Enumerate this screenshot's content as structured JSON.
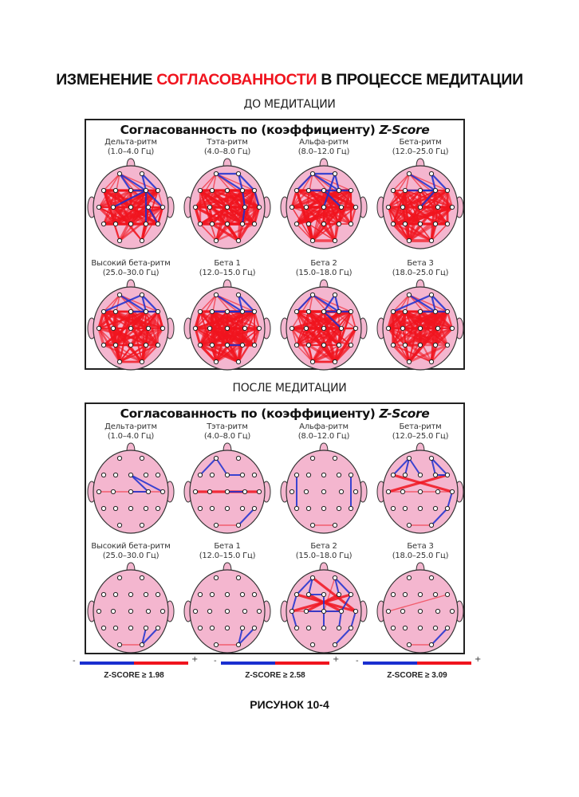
{
  "title": {
    "part1": "ИЗМЕНЕНИЕ ",
    "highlight": "СОГЛАСОВАННОСТИ",
    "part2": " В ПРОЦЕССЕ МЕДИТАЦИИ"
  },
  "colors": {
    "positive": "#f0141e",
    "negative": "#1a2fd0",
    "head_fill": "#f4b6cf",
    "head_outline": "#333333",
    "highlight": "#f0141e"
  },
  "electrodes": [
    "Fp1",
    "Fp2",
    "F7",
    "F3",
    "Fz",
    "F4",
    "F8",
    "T3",
    "C3",
    "Cz",
    "C4",
    "T4",
    "T5",
    "P3",
    "Pz",
    "P4",
    "T6",
    "O1",
    "O2"
  ],
  "panels": [
    {
      "section_label": "ДО МЕДИТАЦИИ",
      "title": "Согласованность по (коэффициенту) ",
      "title_italic": "Z-Score",
      "heads": [
        {
          "name": "Дельта-ритм",
          "range": "(1.0–4.0 Гц)",
          "density": "dense",
          "blue": [
            [
              "Fp1",
              "F4"
            ],
            [
              "Fp2",
              "F4"
            ],
            [
              "Fp1",
              "Fz"
            ],
            [
              "F4",
              "T4"
            ],
            [
              "F4",
              "P4"
            ],
            [
              "F4",
              "C3"
            ],
            [
              "Fz",
              "F4"
            ],
            [
              "C4",
              "T6"
            ],
            [
              "Fp2",
              "F8"
            ]
          ]
        },
        {
          "name": "Тэта-ритм",
          "range": "(4.0–8.0 Гц)",
          "density": "dense",
          "blue": [
            [
              "Fp1",
              "Fp2"
            ],
            [
              "Fp2",
              "F8"
            ],
            [
              "Fp1",
              "F4"
            ],
            [
              "Fp2",
              "F4"
            ],
            [
              "F4",
              "C4"
            ],
            [
              "C4",
              "P4"
            ],
            [
              "F8",
              "T4"
            ]
          ]
        },
        {
          "name": "Альфа-ритм",
          "range": "(8.0–12.0 Гц)",
          "density": "dense",
          "blue": [
            [
              "Fp1",
              "Fp2"
            ],
            [
              "Fp2",
              "F4"
            ],
            [
              "Fp1",
              "F4"
            ],
            [
              "Fp2",
              "Cz"
            ],
            [
              "F4",
              "F8"
            ],
            [
              "F3",
              "F4"
            ],
            [
              "Fz",
              "C4"
            ],
            [
              "Fp1",
              "F7"
            ]
          ]
        },
        {
          "name": "Бета-ритм",
          "range": "(12.0–25.0 Гц)",
          "density": "dense",
          "blue": [
            [
              "Fp1",
              "F4"
            ],
            [
              "Fp2",
              "F4"
            ],
            [
              "Fp2",
              "F8"
            ],
            [
              "Fz",
              "F4"
            ],
            [
              "F4",
              "Cz"
            ],
            [
              "F3",
              "F4"
            ]
          ]
        },
        {
          "name": "Высокий бета-ритм",
          "range": "(25.0–30.0 Гц)",
          "density": "dense",
          "blue": [
            [
              "Fp1",
              "F4"
            ],
            [
              "Fp2",
              "F4"
            ],
            [
              "Fp2",
              "F8"
            ],
            [
              "F4",
              "F8"
            ],
            [
              "Fz",
              "F4"
            ],
            [
              "F7",
              "Fp2"
            ]
          ]
        },
        {
          "name": "Бета 1",
          "range": "(12.0–15.0 Гц)",
          "density": "dense",
          "blue": [
            [
              "Fp1",
              "F4"
            ],
            [
              "Fp2",
              "F4"
            ],
            [
              "Fp2",
              "F8"
            ],
            [
              "F4",
              "F8"
            ],
            [
              "Fz",
              "F4"
            ],
            [
              "Pz",
              "P4"
            ],
            [
              "F3",
              "F4"
            ]
          ]
        },
        {
          "name": "Бета 2",
          "range": "(15.0–18.0 Гц)",
          "density": "dense",
          "blue": [
            [
              "Fp1",
              "F4"
            ],
            [
              "Fp2",
              "F4"
            ],
            [
              "Fp2",
              "Fz"
            ],
            [
              "F4",
              "F8"
            ],
            [
              "Fz",
              "F4"
            ],
            [
              "Fp1",
              "F7"
            ],
            [
              "Fz",
              "C4"
            ]
          ]
        },
        {
          "name": "Бета 3",
          "range": "(18.0–25.0 Гц)",
          "density": "dense",
          "blue": [
            [
              "Fp1",
              "F4"
            ],
            [
              "Fp2",
              "F4"
            ],
            [
              "Fp2",
              "F8"
            ],
            [
              "F4",
              "F8"
            ],
            [
              "Fz",
              "F4"
            ],
            [
              "F7",
              "Fp2"
            ]
          ]
        }
      ]
    },
    {
      "section_label": "ПОСЛЕ МЕДИТАЦИИ",
      "title": "Согласованность по (коэффициенту) ",
      "title_italic": "Z-Score",
      "heads": [
        {
          "name": "Дельта-ритм",
          "range": "(1.0–4.0 Гц)",
          "red": [
            [
              "T3",
              "T4",
              "thin"
            ]
          ],
          "blue": [
            [
              "Fz",
              "C4"
            ],
            [
              "Fz",
              "T4"
            ],
            [
              "Cz",
              "C4"
            ]
          ]
        },
        {
          "name": "Тэта-ритм",
          "range": "(4.0–8.0 Гц)",
          "red": [
            [
              "T3",
              "T4",
              "thick"
            ],
            [
              "O1",
              "O2",
              "thin"
            ]
          ],
          "blue": [
            [
              "F7",
              "Fp1"
            ],
            [
              "Fp1",
              "Fz"
            ],
            [
              "Fz",
              "F4"
            ],
            [
              "Cz",
              "C4"
            ],
            [
              "O2",
              "T6"
            ]
          ]
        },
        {
          "name": "Альфа-ритм",
          "range": "(8.0–12.0 Гц)",
          "red": [
            [
              "O1",
              "O2",
              "thin"
            ]
          ],
          "blue": [
            [
              "F7",
              "T5"
            ],
            [
              "F8",
              "T6"
            ]
          ]
        },
        {
          "name": "Бета-ритм",
          "range": "(12.0–25.0 Гц)",
          "red": [
            [
              "F7",
              "T4",
              "thick"
            ],
            [
              "F8",
              "T3",
              "thick"
            ],
            [
              "T3",
              "T4",
              "thin"
            ],
            [
              "O1",
              "O2",
              "thin"
            ]
          ],
          "blue": [
            [
              "F7",
              "Fp1"
            ],
            [
              "Fp1",
              "F3"
            ],
            [
              "Fp1",
              "Fz"
            ],
            [
              "Fp2",
              "F4"
            ],
            [
              "Fp2",
              "F8"
            ],
            [
              "F4",
              "F8"
            ],
            [
              "T4",
              "T6"
            ],
            [
              "T6",
              "O2"
            ]
          ]
        },
        {
          "name": "Высокий бета-ритм",
          "range": "(25.0–30.0 Гц)",
          "red": [
            [
              "O1",
              "O2",
              "thin"
            ]
          ],
          "blue": [
            [
              "O2",
              "T6"
            ],
            [
              "O2",
              "P4"
            ]
          ]
        },
        {
          "name": "Бета 1",
          "range": "(12.0–15.0 Гц)",
          "red": [
            [
              "O1",
              "O2",
              "thin"
            ]
          ],
          "blue": [
            [
              "O2",
              "T6"
            ],
            [
              "O2",
              "P4"
            ]
          ]
        },
        {
          "name": "Бета 2",
          "range": "(15.0–18.0 Гц)",
          "red": [
            [
              "Fp1",
              "T4",
              "thick"
            ],
            [
              "F7",
              "T4",
              "thick"
            ],
            [
              "F8",
              "T3",
              "thick"
            ],
            [
              "F3",
              "C4",
              "thick"
            ],
            [
              "F4",
              "C3",
              "thick"
            ],
            [
              "T3",
              "C4",
              "thin"
            ],
            [
              "Fp2",
              "Cz",
              "thin"
            ]
          ],
          "blue": [
            [
              "Fp1",
              "F7"
            ],
            [
              "Fp1",
              "F3"
            ],
            [
              "Fp2",
              "F4"
            ],
            [
              "Fp2",
              "F8"
            ],
            [
              "F7",
              "T3"
            ],
            [
              "T3",
              "T5"
            ],
            [
              "Fz",
              "Cz"
            ],
            [
              "Cz",
              "Pz"
            ],
            [
              "C4",
              "P4"
            ],
            [
              "T4",
              "T6"
            ],
            [
              "T6",
              "O2"
            ],
            [
              "Cz",
              "C4"
            ],
            [
              "F8",
              "C4"
            ],
            [
              "F3",
              "Fz"
            ],
            [
              "C3",
              "Cz"
            ]
          ]
        },
        {
          "name": "Бета 3",
          "range": "(18.0–25.0 Гц)",
          "red": [
            [
              "T3",
              "F8",
              "thin"
            ],
            [
              "O1",
              "O2",
              "thin"
            ]
          ],
          "blue": [
            [
              "O2",
              "T6"
            ]
          ]
        }
      ]
    }
  ],
  "legends": [
    {
      "minus": "-",
      "plus": "+",
      "label": "Z-SCORE ≥ 1.98"
    },
    {
      "minus": "-",
      "plus": "+",
      "label": "Z-SCORE ≥ 2.58"
    },
    {
      "minus": "-",
      "plus": "+",
      "label": "Z-SCORE ≥ 3.09"
    }
  ],
  "figure_label": "РИСУНОК 10-4"
}
